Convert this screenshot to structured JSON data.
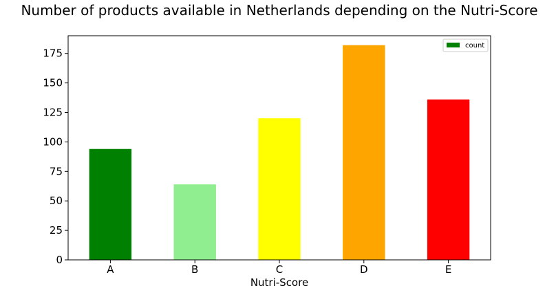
{
  "chart_data": {
    "type": "bar",
    "title": "Number of products available in Netherlands depending on the Nutri-Score",
    "xlabel": "Nutri-Score",
    "ylabel": "",
    "categories": [
      "A",
      "B",
      "C",
      "D",
      "E"
    ],
    "series": [
      {
        "name": "count",
        "values": [
          94,
          64,
          120,
          182,
          136
        ]
      }
    ],
    "bar_colors": [
      "#008000",
      "#90ee90",
      "#ffff00",
      "#ffa500",
      "#ff0000"
    ],
    "legend_color": "#008000",
    "ylim": [
      0,
      190
    ],
    "yticks": [
      0,
      25,
      50,
      75,
      100,
      125,
      150,
      175
    ],
    "grid": false,
    "legend_position": "top-right"
  }
}
